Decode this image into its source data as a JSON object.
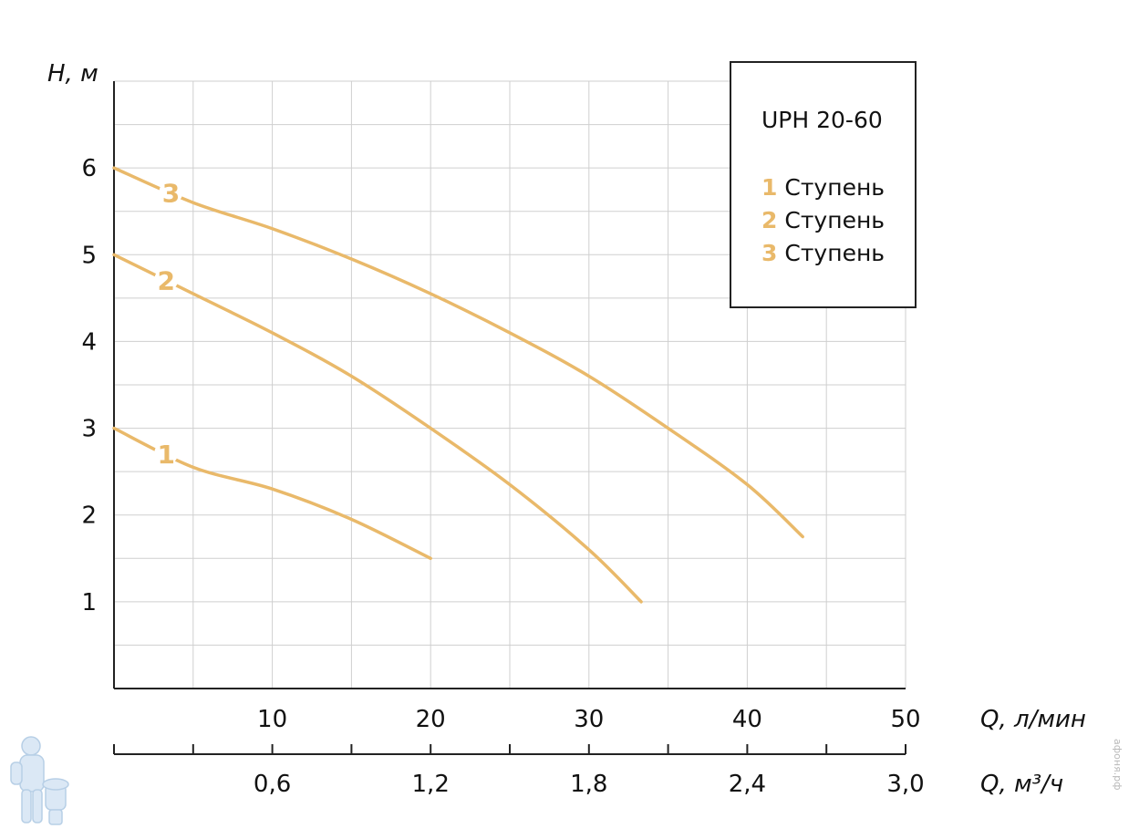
{
  "chart_data": {
    "type": "line",
    "title": "UPH 20-60",
    "ylabel": "H, м",
    "xlabel": "Q, л/мин",
    "xlabel_secondary": "Q, м³/ч",
    "xlim": [
      0,
      50
    ],
    "ylim": [
      0,
      7
    ],
    "x_ticks": [
      "10",
      "20",
      "30",
      "40",
      "50"
    ],
    "x_ticks_secondary": [
      "0,6",
      "1,2",
      "1,8",
      "2,4",
      "3,0"
    ],
    "y_ticks": [
      "1",
      "2",
      "3",
      "4",
      "5",
      "6"
    ],
    "grid": true,
    "series_color": "#e9b96a",
    "series": [
      {
        "label": "1",
        "name": "Ступень",
        "points": [
          [
            0,
            3.0
          ],
          [
            5,
            2.55
          ],
          [
            10,
            2.3
          ],
          [
            15,
            1.95
          ],
          [
            20,
            1.5
          ]
        ]
      },
      {
        "label": "2",
        "name": "Ступень",
        "points": [
          [
            0,
            5.0
          ],
          [
            5,
            4.55
          ],
          [
            10,
            4.1
          ],
          [
            15,
            3.6
          ],
          [
            20,
            3.0
          ],
          [
            25,
            2.35
          ],
          [
            30,
            1.6
          ],
          [
            33.3,
            1.0
          ]
        ]
      },
      {
        "label": "3",
        "name": "Ступень",
        "points": [
          [
            0,
            6.0
          ],
          [
            5,
            5.6
          ],
          [
            10,
            5.3
          ],
          [
            15,
            4.95
          ],
          [
            20,
            4.55
          ],
          [
            25,
            4.1
          ],
          [
            30,
            3.6
          ],
          [
            35,
            3.0
          ],
          [
            40,
            2.35
          ],
          [
            43.5,
            1.75
          ]
        ]
      }
    ],
    "legend_position": "top-right"
  },
  "watermark": {
    "side_text": "афоня.рф"
  }
}
